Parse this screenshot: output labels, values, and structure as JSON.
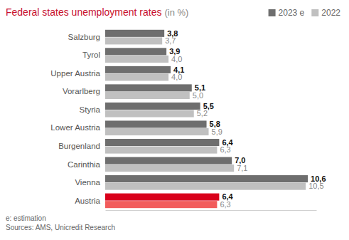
{
  "chart_data": {
    "type": "bar",
    "orientation": "horizontal",
    "title": "Federal states unemployment rates",
    "subtitle": "(in %)",
    "categories": [
      "Salzburg",
      "Tyrol",
      "Upper Austria",
      "Vorarlberg",
      "Styria",
      "Lower Austria",
      "Burgenland",
      "Carinthia",
      "Vienna",
      "Austria"
    ],
    "series": [
      {
        "name": "2023 e",
        "color": "#6e6e6e",
        "colors": [
          "#6e6e6e",
          "#6e6e6e",
          "#6e6e6e",
          "#6e6e6e",
          "#6e6e6e",
          "#6e6e6e",
          "#6e6e6e",
          "#6e6e6e",
          "#6e6e6e",
          "#d9001b"
        ],
        "values": [
          3.8,
          3.9,
          4.1,
          5.1,
          5.5,
          5.8,
          6.4,
          7.0,
          10.6,
          6.4
        ],
        "value_labels": [
          "3,8",
          "3,9",
          "4,1",
          "5,1",
          "5,5",
          "5,8",
          "6,4",
          "7,0",
          "10,6",
          "6,4"
        ]
      },
      {
        "name": "2022",
        "color": "#c0c0c0",
        "colors": [
          "#c0c0c0",
          "#c0c0c0",
          "#c0c0c0",
          "#c0c0c0",
          "#c0c0c0",
          "#c0c0c0",
          "#c0c0c0",
          "#c0c0c0",
          "#c0c0c0",
          "#f25c5c"
        ],
        "values": [
          3.7,
          4.0,
          4.0,
          5.0,
          5.2,
          5.9,
          6.3,
          7.1,
          10.5,
          6.3
        ],
        "value_labels": [
          "3,7",
          "4,0",
          "4,0",
          "5,0",
          "5,2",
          "5,9",
          "6,3",
          "7,1",
          "10,5",
          "6,3"
        ]
      }
    ],
    "xlim": [
      1,
      11
    ],
    "xticks": [],
    "grid": false,
    "data_labels": true,
    "tick_labels": "y",
    "legend": "top-right",
    "annotations": [
      "e: estimation",
      "Sources: AMS, Unicredit Research"
    ]
  }
}
